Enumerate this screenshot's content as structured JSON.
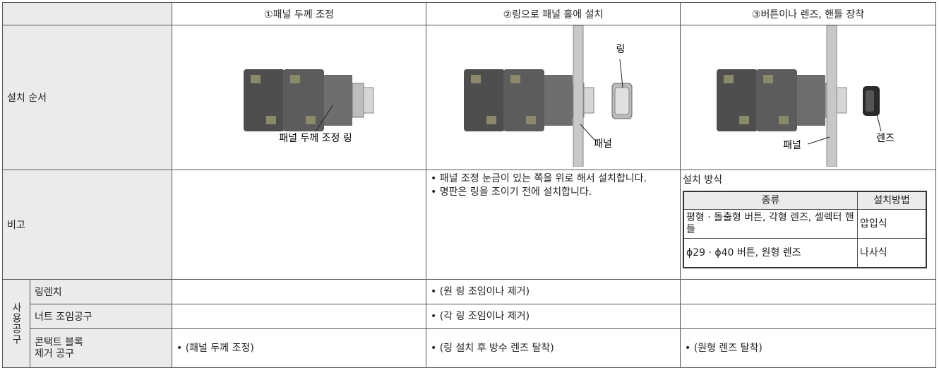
{
  "table": {
    "header": [
      "①패널 두께 조정",
      "②링으로 패널 홀에 설치",
      "③버튼이나 렌즈, 핸들 장착"
    ],
    "install": {
      "label": "설치 순서",
      "callouts": [
        "패널 두께 조정 링",
        "링",
        "패널",
        "패널",
        "렌즈"
      ]
    },
    "notes": {
      "label": "비고",
      "bullets": [
        "패널 조정 눈금이 있는 쪽을 위로 해서 설치합니다.",
        "명판은 링을 조이기 전에 설치합니다."
      ],
      "method_title": "설치 방식",
      "method_header": [
        "종류",
        "설치방법"
      ],
      "method_rows": [
        [
          "평형 · 돌출형 버튼, 각형 렌즈, 셀렉터 핸들",
          "압입식"
        ],
        [
          "ϕ29 · ϕ40 버튼, 원형 렌즈",
          "나사식"
        ]
      ]
    },
    "tools": {
      "label": "사용공구",
      "rows": [
        {
          "name": "링렌치",
          "step2": "(원 링 조임이나 제거)"
        },
        {
          "name": "너트 조임공구",
          "step2": "(각 링 조임이나 제거)"
        },
        {
          "name": [
            "콘택트 블록",
            "제거 공구"
          ],
          "step1": "(패널 두께 조정)",
          "step2": "(링 설치 후 방수 렌즈 탈착)",
          "step3": "(원형 렌즈 탈착)"
        }
      ]
    }
  }
}
